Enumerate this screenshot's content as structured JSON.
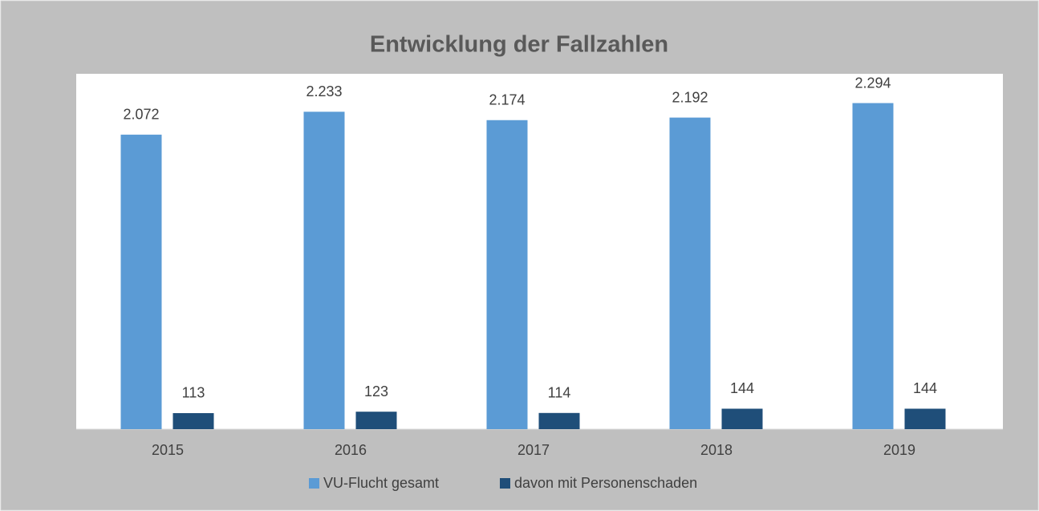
{
  "chart_data": {
    "type": "bar",
    "title": "Entwicklung der Fallzahlen",
    "categories": [
      "2015",
      "2016",
      "2017",
      "2018",
      "2019"
    ],
    "series": [
      {
        "name": "VU-Flucht gesamt",
        "color": "#5b9bd5",
        "values": [
          2072,
          2233,
          2174,
          2192,
          2294
        ],
        "value_labels": [
          "2.072",
          "2.233",
          "2.174",
          "2.192",
          "2.294"
        ]
      },
      {
        "name": "davon mit Personenschaden",
        "color": "#1f4e79",
        "values": [
          113,
          123,
          114,
          144,
          144
        ]
      }
    ],
    "ylim": [
      0,
      2500
    ],
    "legend": "bottom"
  }
}
